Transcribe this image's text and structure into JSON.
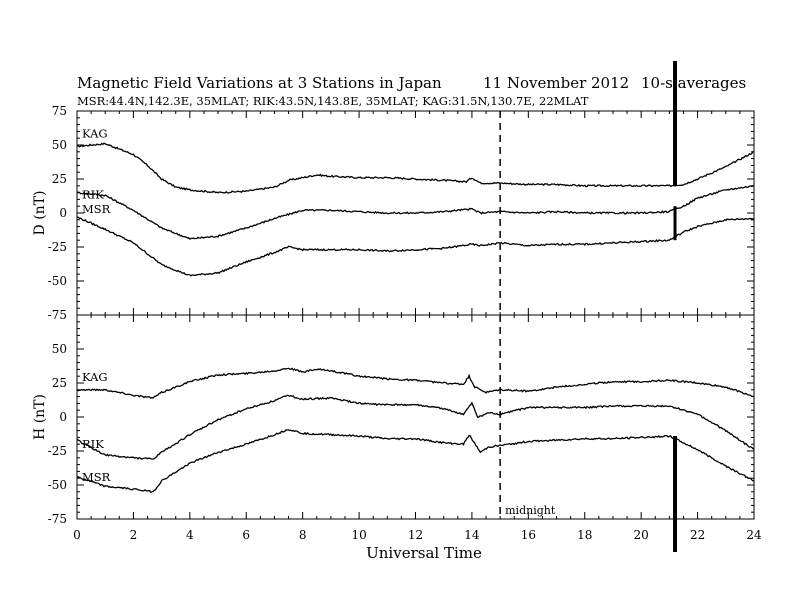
{
  "header": {
    "title": "Magnetic Field Variations at 3 Stations in Japan",
    "date": "11 November 2012",
    "averaging": "10-s averages",
    "stations": "MSR:44.4N,142.3E, 35MLAT;  RIK:43.5N,143.8E, 35MLAT;  KAG:31.5N,130.7E, 22MLAT"
  },
  "chart_data": [
    {
      "type": "line",
      "panel": "D",
      "ylabel": "D (nT)",
      "xlabel": "Universal Time",
      "xlim": [
        0,
        24
      ],
      "ylim": [
        -75,
        75
      ],
      "xticks": [
        "0",
        "2",
        "4",
        "6",
        "8",
        "10",
        "12",
        "14",
        "16",
        "18",
        "20",
        "22",
        "24"
      ],
      "yticks": [
        "75",
        "50",
        "25",
        "0",
        "-25",
        "-50",
        "-75"
      ],
      "series": [
        {
          "name": "KAG",
          "x": [
            0,
            1,
            2,
            2.5,
            3,
            3.5,
            4,
            5,
            6,
            7,
            7.5,
            8.5,
            9,
            10,
            11,
            12,
            13,
            13.8,
            14,
            14.3,
            15,
            16,
            17,
            18,
            19,
            20,
            21,
            21.5,
            22,
            23,
            24
          ],
          "y": [
            49,
            51,
            43,
            35,
            25,
            19,
            17,
            15,
            16,
            19,
            24,
            28,
            27,
            26,
            26,
            25,
            24,
            23,
            26,
            22,
            22,
            21,
            21,
            20,
            20,
            20,
            20,
            21,
            25,
            34,
            45
          ]
        },
        {
          "name": "RIK",
          "x": [
            0,
            1,
            2,
            3,
            4,
            5,
            6,
            7,
            8,
            9,
            10,
            11,
            12,
            13,
            14,
            14.3,
            15,
            16,
            17,
            18,
            19,
            20,
            21,
            21.5,
            22,
            23,
            24
          ],
          "y": [
            15,
            13,
            2,
            -11,
            -19,
            -17,
            -11,
            -4,
            2,
            2,
            1,
            0,
            0,
            1,
            3,
            0,
            1,
            0,
            1,
            0,
            0,
            0,
            1,
            5,
            11,
            17,
            20
          ]
        },
        {
          "name": "MSR",
          "x": [
            0,
            1,
            2,
            3,
            4,
            5,
            6,
            7,
            7.5,
            8,
            9,
            10,
            11,
            12,
            13,
            14,
            14.3,
            15,
            16,
            17,
            18,
            19,
            20,
            21,
            21.5,
            22,
            23,
            24
          ],
          "y": [
            -3,
            -12,
            -22,
            -38,
            -46,
            -44,
            -36,
            -29,
            -25,
            -27,
            -27,
            -27,
            -28,
            -27,
            -26,
            -23,
            -24,
            -22,
            -24,
            -23,
            -23,
            -22,
            -21,
            -20,
            -14,
            -10,
            -5,
            -4
          ]
        }
      ]
    },
    {
      "type": "line",
      "panel": "H",
      "ylabel": "H (nT)",
      "xlabel": "Universal Time",
      "xlim": [
        0,
        24
      ],
      "ylim": [
        -75,
        75
      ],
      "xticks": [
        "0",
        "2",
        "4",
        "6",
        "8",
        "10",
        "12",
        "14",
        "16",
        "18",
        "20",
        "22",
        "24"
      ],
      "yticks": [
        "75",
        "50",
        "25",
        "0",
        "-25",
        "-50",
        "-75"
      ],
      "series": [
        {
          "name": "KAG",
          "x": [
            0,
            1,
            2,
            2.7,
            3,
            4,
            5,
            6,
            7,
            7.5,
            8,
            8.5,
            9,
            10,
            11,
            12,
            13,
            13.7,
            13.9,
            14.1,
            14.5,
            15,
            16,
            17,
            18,
            19,
            20,
            21,
            22,
            23,
            24
          ],
          "y": [
            20,
            20,
            16,
            14,
            18,
            26,
            31,
            32,
            34,
            36,
            33,
            35,
            34,
            30,
            28,
            27,
            25,
            24,
            30,
            22,
            18,
            20,
            19,
            22,
            24,
            26,
            26,
            27,
            25,
            22,
            15
          ]
        },
        {
          "name": "RIK",
          "x": [
            0,
            1,
            2,
            2.7,
            3,
            4,
            5,
            6,
            7,
            7.5,
            8,
            9,
            10,
            11,
            12,
            13,
            13.7,
            14,
            14.2,
            14.6,
            15,
            16,
            17,
            18,
            19,
            20,
            21,
            22,
            23,
            24
          ],
          "y": [
            -17,
            -28,
            -30,
            -31,
            -26,
            -13,
            -2,
            6,
            12,
            16,
            13,
            14,
            10,
            9,
            9,
            6,
            2,
            10,
            0,
            3,
            2,
            7,
            7,
            7,
            8,
            8,
            8,
            2,
            -10,
            -24
          ]
        },
        {
          "name": "MSR",
          "x": [
            0,
            1,
            2,
            2.7,
            3,
            4,
            5,
            6,
            7,
            7.5,
            8,
            9,
            10,
            11,
            12,
            13,
            13.7,
            13.9,
            14.3,
            14.6,
            15,
            16,
            17,
            18,
            19,
            20,
            21,
            22,
            23,
            24
          ],
          "y": [
            -44,
            -51,
            -53,
            -55,
            -47,
            -34,
            -26,
            -20,
            -13,
            -9,
            -12,
            -13,
            -14,
            -16,
            -16,
            -19,
            -20,
            -13,
            -26,
            -22,
            -21,
            -18,
            -17,
            -16,
            -16,
            -15,
            -14,
            -24,
            -36,
            -47
          ]
        }
      ]
    }
  ],
  "annotations": {
    "midnight_label": "midnight",
    "midnight_ut": 15,
    "event_ut": 21.2
  }
}
